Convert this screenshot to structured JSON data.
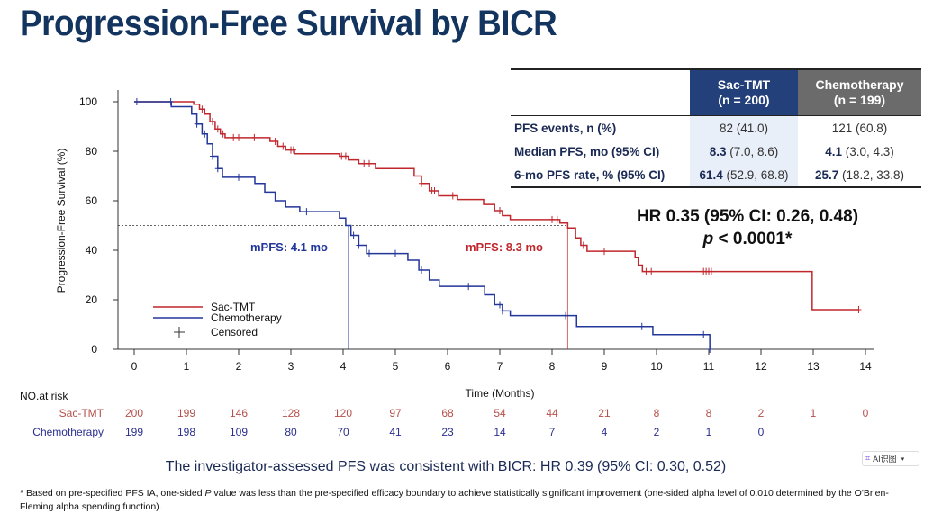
{
  "title": "Progression-Free Survival by BICR",
  "table": {
    "headers": [
      {
        "line1": "Sac-TMT",
        "line2": "(n = 200)"
      },
      {
        "line1": "Chemotherapy",
        "line2": "(n = 199)"
      }
    ],
    "rows": [
      {
        "label": "PFS events, n (%)",
        "sac_bold": "",
        "sac_rest": "82 (41.0)",
        "chemo_bold": "",
        "chemo_rest": "121 (60.8)"
      },
      {
        "label": "Median PFS, mo (95% CI)",
        "sac_bold": "8.3",
        "sac_rest": " (7.0, 8.6)",
        "chemo_bold": "4.1",
        "chemo_rest": " (3.0, 4.3)"
      },
      {
        "label": "6-mo PFS rate, %  (95% CI)",
        "sac_bold": "61.4",
        "sac_rest": " (52.9, 68.8)",
        "chemo_bold": "25.7",
        "chemo_rest": " (18.2, 33.8)"
      }
    ],
    "header_colors": {
      "sac": "#23407a",
      "chemo": "#6b6b6b"
    }
  },
  "hr_text": "HR 0.35 (95% CI: 0.26, 0.48)",
  "p_label": "p",
  "p_rest": " < 0.0001*",
  "chart_data": {
    "type": "line",
    "subtype": "kaplan-meier step",
    "xlabel": "Time (Months)",
    "ylabel": "Progression-Free Survival (%)",
    "xlim": [
      0,
      14
    ],
    "ylim": [
      0,
      100
    ],
    "xticks": [
      0,
      1,
      2,
      3,
      4,
      5,
      6,
      7,
      8,
      9,
      10,
      11,
      12,
      13,
      14
    ],
    "yticks": [
      0,
      20,
      40,
      60,
      80,
      100
    ],
    "grid": false,
    "legend_position": "bottom-left",
    "legend": [
      "Sac-TMT",
      "Chemotherapy",
      "Censored"
    ],
    "reference_line_y": 50,
    "series": [
      {
        "name": "Sac-TMT",
        "color": "#c0272d",
        "median": 8.3,
        "median_label": "mPFS: 8.3 mo",
        "end": 13.87,
        "steps": [
          [
            0,
            100
          ],
          [
            1.14,
            99
          ],
          [
            1.25,
            97
          ],
          [
            1.35,
            95
          ],
          [
            1.45,
            92
          ],
          [
            1.55,
            89
          ],
          [
            1.65,
            87
          ],
          [
            1.74,
            85.5
          ],
          [
            2.6,
            84
          ],
          [
            2.75,
            82
          ],
          [
            2.9,
            80.5
          ],
          [
            3.07,
            79
          ],
          [
            3.93,
            78
          ],
          [
            4.1,
            76.5
          ],
          [
            4.3,
            75
          ],
          [
            4.62,
            73
          ],
          [
            5.36,
            70
          ],
          [
            5.5,
            67
          ],
          [
            5.65,
            64
          ],
          [
            5.83,
            62
          ],
          [
            6.19,
            60.5
          ],
          [
            6.69,
            58.5
          ],
          [
            6.9,
            56
          ],
          [
            7.05,
            54
          ],
          [
            7.2,
            52.4
          ],
          [
            8.15,
            51
          ],
          [
            8.3,
            49
          ],
          [
            8.45,
            45
          ],
          [
            8.55,
            42
          ],
          [
            8.67,
            39.6
          ],
          [
            9.59,
            37
          ],
          [
            9.65,
            34
          ],
          [
            9.73,
            31.4
          ],
          [
            12.98,
            16
          ]
        ],
        "censored": [
          1.3,
          1.5,
          1.6,
          1.7,
          1.9,
          2.0,
          2.3,
          2.7,
          2.85,
          3.0,
          3.05,
          3.97,
          4.05,
          4.4,
          4.5,
          5.5,
          5.7,
          5.75,
          6.1,
          7.0,
          8.0,
          8.1,
          8.6,
          9.0,
          9.8,
          9.9,
          10.9,
          10.95,
          11.0,
          11.05,
          13.87
        ]
      },
      {
        "name": "Chemotherapy",
        "color": "#23369a",
        "median": 4.1,
        "median_label": "mPFS: 4.1 mo",
        "end": 11.02,
        "steps": [
          [
            0,
            100
          ],
          [
            0.71,
            98
          ],
          [
            1.1,
            95
          ],
          [
            1.2,
            91
          ],
          [
            1.3,
            87
          ],
          [
            1.4,
            83
          ],
          [
            1.5,
            78
          ],
          [
            1.6,
            73
          ],
          [
            1.69,
            69.5
          ],
          [
            2.31,
            67
          ],
          [
            2.5,
            63.5
          ],
          [
            2.7,
            60
          ],
          [
            2.9,
            57.5
          ],
          [
            3.17,
            55.6
          ],
          [
            3.93,
            53
          ],
          [
            4.05,
            50
          ],
          [
            4.15,
            46
          ],
          [
            4.3,
            42
          ],
          [
            4.45,
            38.7
          ],
          [
            5.24,
            36
          ],
          [
            5.45,
            32
          ],
          [
            5.65,
            28
          ],
          [
            5.84,
            25.4
          ],
          [
            6.71,
            22
          ],
          [
            6.9,
            18
          ],
          [
            7.05,
            15.5
          ],
          [
            7.2,
            13.6
          ],
          [
            8.47,
            9.2
          ],
          [
            9.93,
            5.9
          ],
          [
            11.02,
            0
          ]
        ],
        "censored": [
          0.05,
          0.7,
          1.2,
          1.35,
          1.5,
          1.6,
          2.0,
          3.3,
          4.2,
          4.3,
          4.5,
          5.0,
          5.5,
          6.4,
          7.0,
          7.05,
          8.26,
          9.72,
          10.9,
          11.02
        ]
      }
    ]
  },
  "at_risk": {
    "title": "NO.at risk",
    "rows": [
      {
        "label": "Sac-TMT",
        "color": "#b5504a",
        "values": [
          "200",
          "199",
          "146",
          "128",
          "120",
          "97",
          "68",
          "54",
          "44",
          "21",
          "8",
          "8",
          "2",
          "1",
          "0"
        ]
      },
      {
        "label": "Chemotherapy",
        "color": "#2b2f8f",
        "values": [
          "199",
          "198",
          "109",
          "80",
          "70",
          "41",
          "23",
          "14",
          "7",
          "4",
          "2",
          "1",
          "0"
        ]
      }
    ]
  },
  "note": "The investigator-assessed PFS was consistent with BICR: HR 0.39 (95% CI: 0.30, 0.52)",
  "footnote_a": "* Based on pre-specified PFS IA, one-sided ",
  "footnote_p": "P",
  "footnote_b": " value was less than the pre-specified efficacy boundary to achieve statistically significant improvement (one-sided alpha level of 0.010 determined by the O'Brien-Fleming alpha spending function).",
  "ai_button": "AI识图"
}
